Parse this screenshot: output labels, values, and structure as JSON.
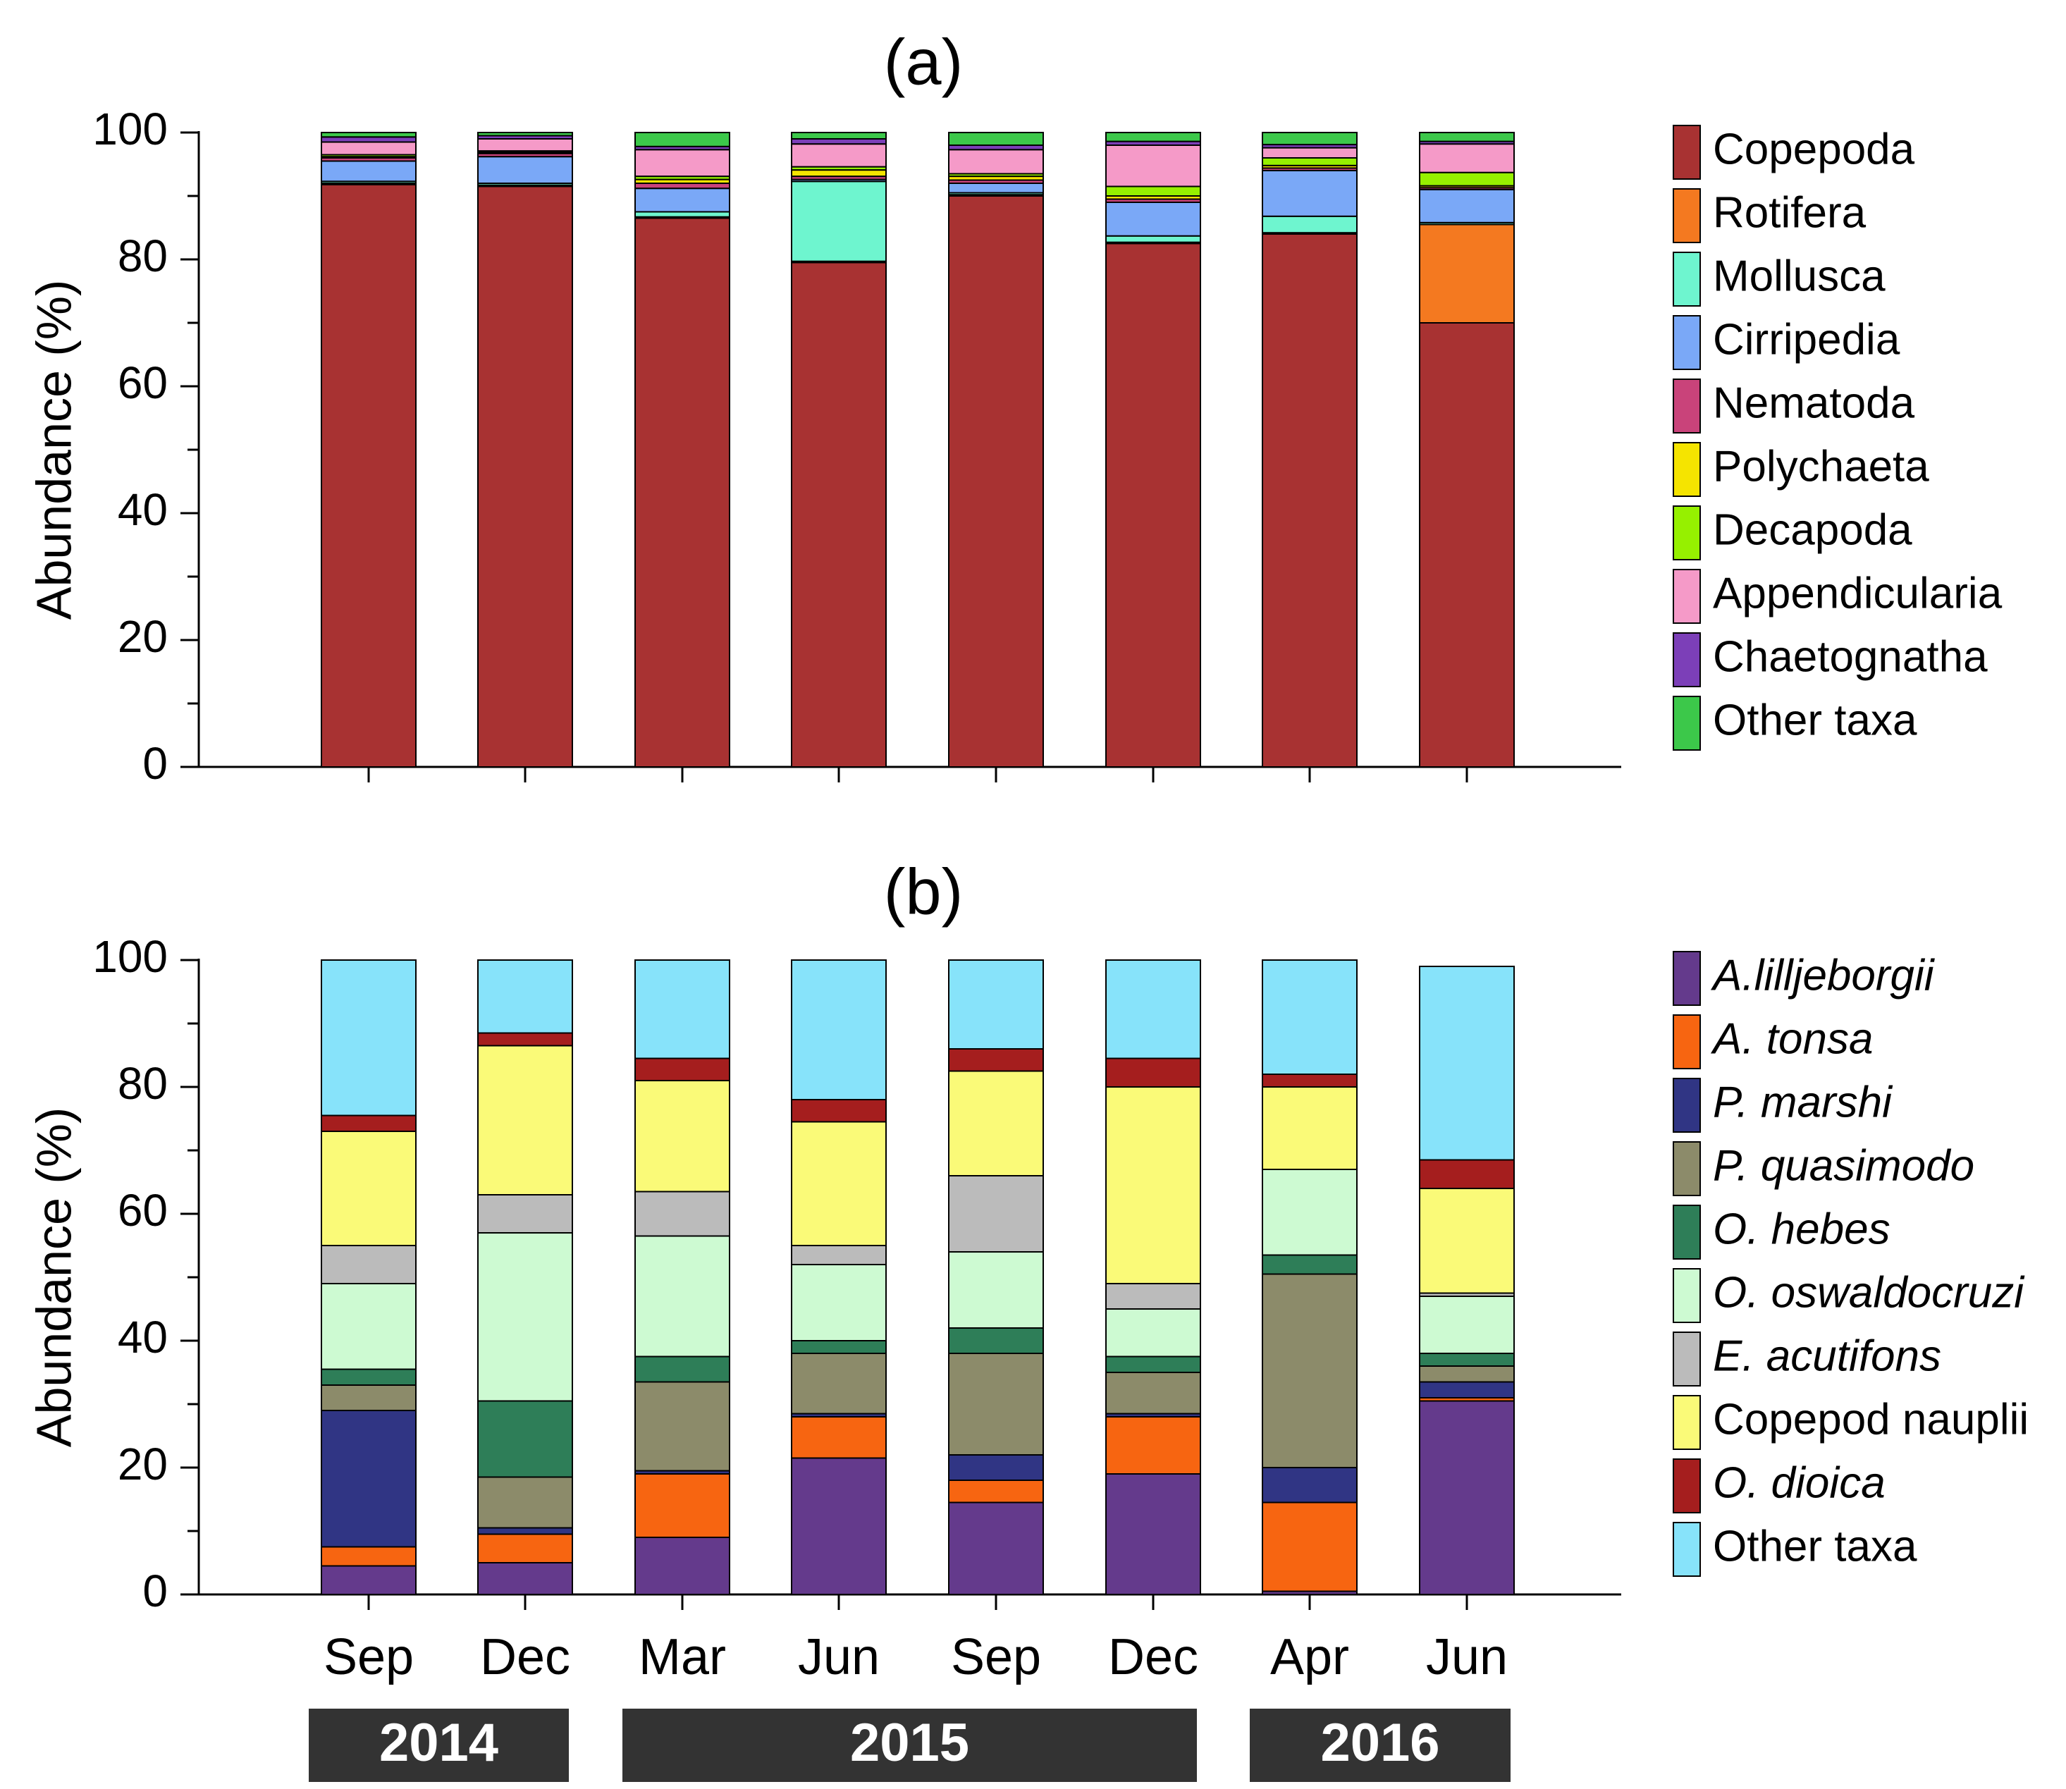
{
  "chart_data": [
    {
      "type": "bar",
      "stacked": true,
      "title": "(a)",
      "ylabel": "Abundance (%)",
      "xlabel": "",
      "ylim": [
        0,
        100
      ],
      "yticks": [
        0,
        20,
        40,
        60,
        80,
        100
      ],
      "categories": [
        "Sep",
        "Dec",
        "Mar",
        "Jun",
        "Sep",
        "Dec",
        "Apr",
        "Jun"
      ],
      "legend_position": "right",
      "series": [
        {
          "name": "Copepoda",
          "color": "#a83232",
          "values": [
            91.8,
            91.5,
            86.5,
            79.5,
            90.0,
            82.5,
            84.0,
            70.0
          ]
        },
        {
          "name": "Rotifera",
          "color": "#f47920",
          "values": [
            0.2,
            0.2,
            0.2,
            0.2,
            0.2,
            0.2,
            0.2,
            15.5
          ]
        },
        {
          "name": "Mollusca",
          "color": "#6ef5cf",
          "values": [
            0.3,
            0.3,
            0.8,
            12.6,
            0.3,
            1.0,
            2.6,
            0.3
          ]
        },
        {
          "name": "Cirripedia",
          "color": "#7aa8f7",
          "values": [
            3.2,
            4.2,
            3.7,
            0.3,
            1.5,
            5.3,
            7.2,
            5.2
          ]
        },
        {
          "name": "Nematoda",
          "color": "#c9437a",
          "values": [
            0.5,
            0.5,
            0.8,
            0.5,
            0.5,
            0.5,
            0.4,
            0.3
          ]
        },
        {
          "name": "Polychaeta",
          "color": "#f5e400",
          "values": [
            0.2,
            0.2,
            0.6,
            1.0,
            0.6,
            0.5,
            0.4,
            0.3
          ]
        },
        {
          "name": "Decapoda",
          "color": "#96f000",
          "values": [
            0.3,
            0.2,
            0.5,
            0.5,
            0.4,
            1.5,
            1.2,
            2.1
          ]
        },
        {
          "name": "Appendicularia",
          "color": "#f59ac8",
          "values": [
            2.0,
            1.9,
            4.2,
            3.6,
            3.8,
            6.5,
            1.6,
            4.5
          ]
        },
        {
          "name": "Chaetognatha",
          "color": "#7c3fb8",
          "values": [
            0.8,
            0.5,
            0.5,
            0.8,
            0.7,
            0.6,
            0.5,
            0.4
          ]
        },
        {
          "name": "Other taxa",
          "color": "#3cc84a",
          "values": [
            0.7,
            0.5,
            2.2,
            1.0,
            2.0,
            1.4,
            1.9,
            1.4
          ]
        }
      ]
    },
    {
      "type": "bar",
      "stacked": true,
      "title": "(b)",
      "ylabel": "Abundance (%)",
      "xlabel": "",
      "ylim": [
        0,
        100
      ],
      "yticks": [
        0,
        20,
        40,
        60,
        80,
        100
      ],
      "categories": [
        "Sep",
        "Dec",
        "Mar",
        "Jun",
        "Sep",
        "Dec",
        "Apr",
        "Jun"
      ],
      "legend_position": "right",
      "series": [
        {
          "name": "A.lilljeborgii",
          "italic": true,
          "color": "#643a8c",
          "values": [
            4.5,
            5.0,
            9.0,
            21.5,
            14.5,
            19.0,
            0.5,
            30.5
          ]
        },
        {
          "name": "A. tonsa",
          "italic": true,
          "color": "#f76511",
          "values": [
            3.0,
            4.5,
            10.0,
            6.5,
            3.5,
            9.0,
            14.0,
            0.5
          ]
        },
        {
          "name": "P. marshi",
          "italic": true,
          "color": "#303584",
          "values": [
            21.5,
            1.0,
            0.5,
            0.5,
            4.0,
            0.5,
            5.5,
            2.5
          ]
        },
        {
          "name": "P. quasimodo",
          "italic": true,
          "color": "#8c8b6a",
          "values": [
            4.0,
            8.0,
            14.0,
            9.5,
            16.0,
            6.5,
            30.5,
            2.5
          ]
        },
        {
          "name": "O. hebes",
          "italic": true,
          "color": "#2e7e58",
          "values": [
            2.5,
            12.0,
            4.0,
            2.0,
            4.0,
            2.5,
            3.0,
            2.0
          ]
        },
        {
          "name": "O. oswaldocruzi",
          "italic": true,
          "color": "#cdfad2",
          "values": [
            13.5,
            26.5,
            19.0,
            12.0,
            12.0,
            7.5,
            13.5,
            9.0
          ]
        },
        {
          "name": "E. acutifons",
          "italic": true,
          "color": "#bbbbbb",
          "values": [
            6.0,
            6.0,
            7.0,
            3.0,
            12.0,
            4.0,
            0.0,
            0.5
          ]
        },
        {
          "name": "Copepod nauplii",
          "italic": false,
          "color": "#fafa78",
          "values": [
            18.0,
            23.5,
            17.5,
            19.5,
            16.5,
            31.0,
            13.0,
            16.5
          ]
        },
        {
          "name": "O. dioica",
          "italic": true,
          "color": "#a51e1e",
          "values": [
            2.5,
            2.0,
            3.5,
            3.5,
            3.5,
            4.5,
            2.0,
            4.5
          ]
        },
        {
          "name": "Other taxa",
          "italic": false,
          "color": "#87e3fa",
          "values": [
            24.5,
            11.5,
            15.5,
            22.0,
            14.0,
            15.5,
            18.0,
            30.5
          ]
        }
      ]
    }
  ],
  "year_groups": [
    {
      "label": "2014",
      "first": 0,
      "last": 1
    },
    {
      "label": "2015",
      "first": 2,
      "last": 5
    },
    {
      "label": "2016",
      "first": 6,
      "last": 7
    }
  ]
}
